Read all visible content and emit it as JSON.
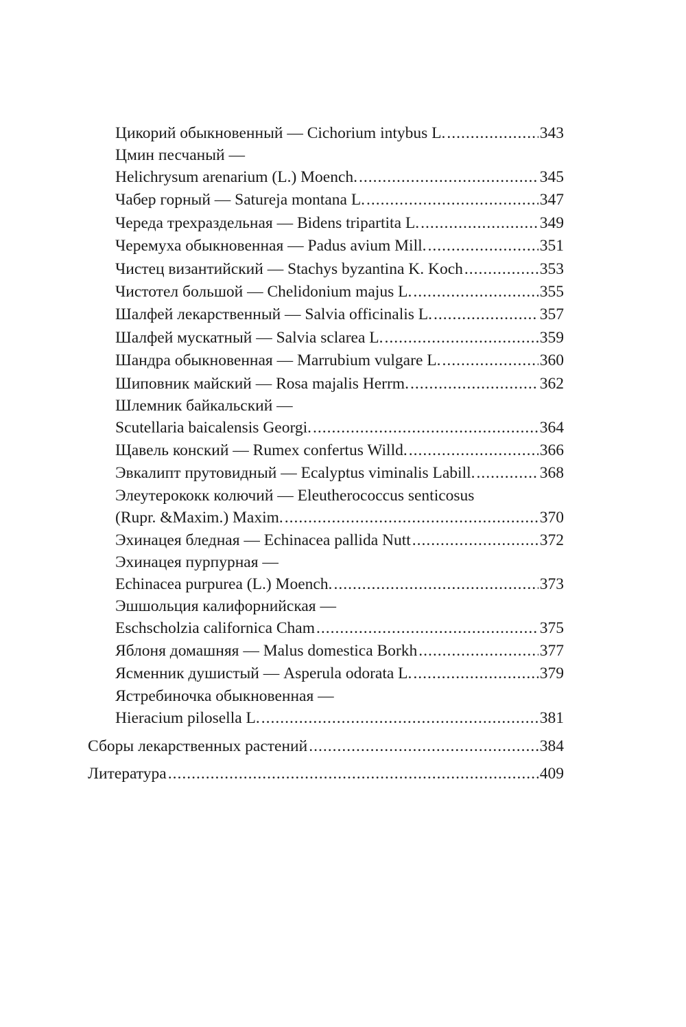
{
  "toc": {
    "sub_entries": [
      {
        "lines": [
          "Цикорий обыкновенный — Cichorium intybus L."
        ],
        "page": "343"
      },
      {
        "lines": [
          "Цмин песчаный —",
          "Helichrysum arenarium (L.) Moench."
        ],
        "page": "345"
      },
      {
        "lines": [
          "Чабер горный — Satureja montana L."
        ],
        "page": "347"
      },
      {
        "lines": [
          "Череда трехраздельная — Bidens tripartita L."
        ],
        "page": "349"
      },
      {
        "lines": [
          "Черемуха обыкновенная — Padus avium Mill."
        ],
        "page": "351"
      },
      {
        "lines": [
          "Чистец византийский — Stachys byzantina K. Koch"
        ],
        "page": "353"
      },
      {
        "lines": [
          "Чистотел большой — Chelidonium majus L."
        ],
        "page": "355"
      },
      {
        "lines": [
          "Шалфей лекарственный — Salvia officinalis L."
        ],
        "page": "357"
      },
      {
        "lines": [
          "Шалфей мускатный — Salvia sclarea L."
        ],
        "page": "359"
      },
      {
        "lines": [
          "Шандра обыкновенная — Marrubium vulgare L."
        ],
        "page": "360"
      },
      {
        "lines": [
          "Шиповник майский — Rosa majalis Herrm."
        ],
        "page": "362"
      },
      {
        "lines": [
          "Шлемник байкальский —",
          "Scutellaria baicalensis Georgi."
        ],
        "page": "364"
      },
      {
        "lines": [
          "Щавель конский — Rumex confertus Willd."
        ],
        "page": "366"
      },
      {
        "lines": [
          "Эвкалипт прутовидный — Ecalyptus viminalis Labill."
        ],
        "page": "368"
      },
      {
        "lines": [
          "Элеутерококк колючий — Eleutherococcus senticosus",
          "(Rupr. &Maxim.) Maxim."
        ],
        "page": "370"
      },
      {
        "lines": [
          "Эхинацея бледная — Echinacea pallida Nutt"
        ],
        "page": "372"
      },
      {
        "lines": [
          "Эхинацея пурпурная —",
          "Echinacea purpurea (L.) Moench."
        ],
        "page": "373"
      },
      {
        "lines": [
          "Эшшольция калифорнийская —",
          "Eschscholzia californica Cham"
        ],
        "page": "375"
      },
      {
        "lines": [
          "Яблоня домашняя — Malus domestica Borkh"
        ],
        "page": "377"
      },
      {
        "lines": [
          "Ясменник душистый — Asperula odorata L."
        ],
        "page": "379"
      },
      {
        "lines": [
          "Ястребиночка обыкновенная —",
          "Hieracium pilosella L."
        ],
        "page": "381"
      }
    ],
    "top_entries": [
      {
        "title": "Сборы лекарственных растений",
        "page": "384"
      },
      {
        "title": "Литература",
        "page": "409"
      }
    ]
  }
}
